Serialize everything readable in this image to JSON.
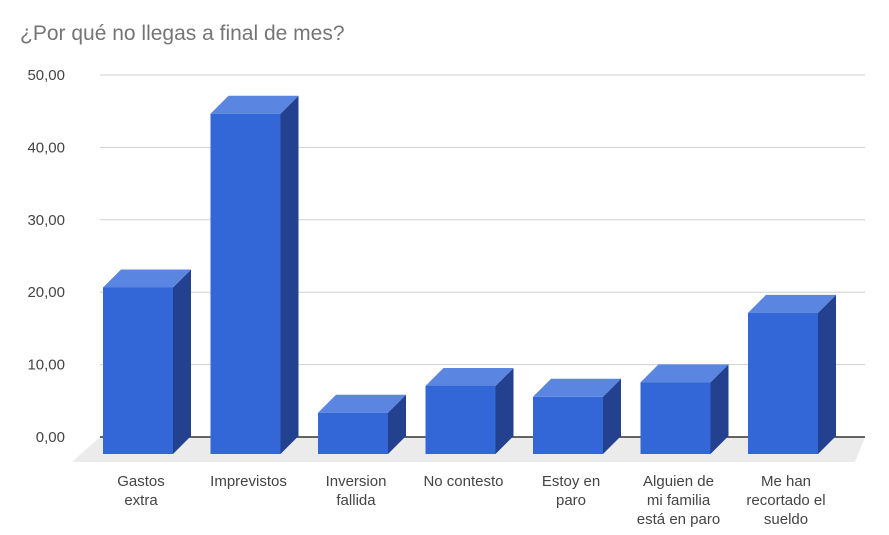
{
  "chart_data": {
    "type": "bar",
    "title": "¿Por qué no llegas a final de mes?",
    "xlabel": "",
    "ylabel": "",
    "ylim": [
      0,
      50
    ],
    "yticks": [
      "0,00",
      "10,00",
      "20,00",
      "30,00",
      "40,00",
      "50,00"
    ],
    "grid": true,
    "legend": "none",
    "three_d": true,
    "categories": [
      [
        "Gastos",
        "extra"
      ],
      [
        "Imprevistos"
      ],
      [
        "Inversion",
        "fallida"
      ],
      [
        "No contesto"
      ],
      [
        "Estoy en",
        "paro"
      ],
      [
        "Alguien de",
        "mi familia",
        "está en paro"
      ],
      [
        "Me han",
        "recortado el",
        "sueldo"
      ]
    ],
    "values": [
      23,
      47,
      5.7,
      9.4,
      7.9,
      9.9,
      19.5
    ],
    "colors": {
      "front": "#3366d6",
      "top": "#5a85e0",
      "side": "#23418f",
      "floor": "#ebebeb",
      "grid": "#d0d0d0"
    }
  }
}
